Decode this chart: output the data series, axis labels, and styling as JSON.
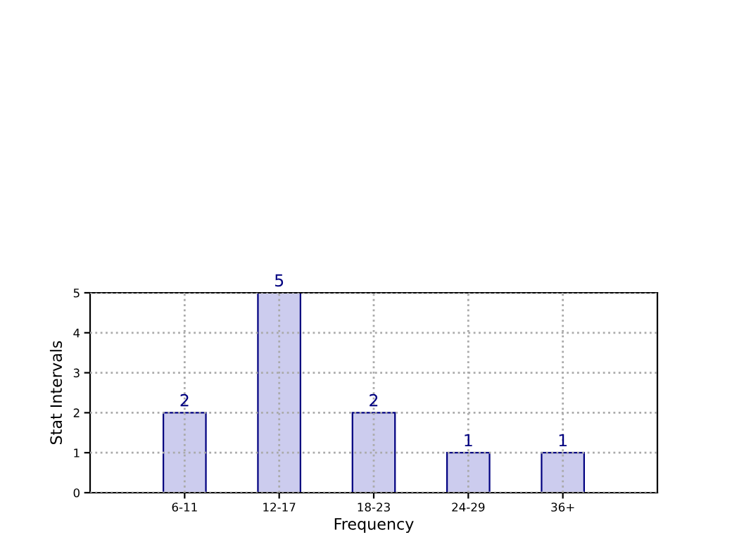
{
  "chart_data": {
    "type": "bar",
    "xlabel": "Frequency",
    "ylabel": "Stat Intervals",
    "categories": [
      "6-11",
      "12-17",
      "18-23",
      "24-29",
      "36+"
    ],
    "values": [
      2,
      5,
      2,
      1,
      1
    ],
    "color": "#ccccee",
    "ylim": [
      0,
      5
    ],
    "yticks": [
      0,
      1,
      2,
      3,
      4,
      5
    ],
    "grid": true,
    "data_labels": true
  }
}
